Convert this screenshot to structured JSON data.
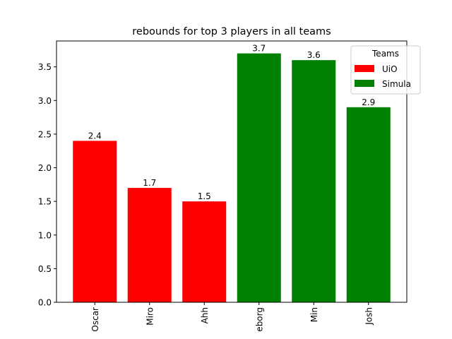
{
  "chart_data": {
    "type": "bar",
    "title": "rebounds for top 3 players in all teams",
    "xlabel": "",
    "ylabel": "",
    "categories": [
      "Oscar",
      "Miro",
      "Ahh",
      "eborg",
      "Min",
      "Josh"
    ],
    "series": [
      {
        "name": "UiO",
        "color": "#ff0000",
        "values": [
          2.4,
          1.7,
          1.5,
          null,
          null,
          null
        ]
      },
      {
        "name": "Simula",
        "color": "#008000",
        "values": [
          null,
          null,
          null,
          3.7,
          3.6,
          2.9
        ]
      }
    ],
    "data_labels": [
      "2.4",
      "1.7",
      "1.5",
      "3.7",
      "3.6",
      "2.9"
    ],
    "yticks": [
      "0.0",
      "0.5",
      "1.0",
      "1.5",
      "2.0",
      "2.5",
      "3.0",
      "3.5"
    ],
    "ylim": [
      0,
      3.885
    ],
    "grid": false,
    "legend": {
      "title": "Teams",
      "position": "top-right"
    }
  }
}
